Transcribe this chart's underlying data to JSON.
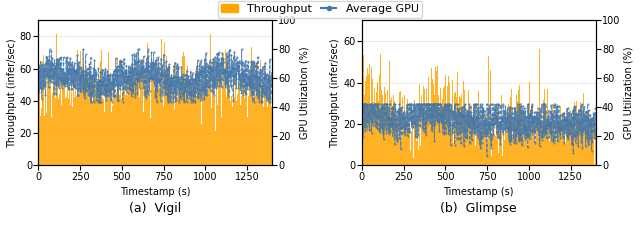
{
  "fig_width": 6.4,
  "fig_height": 2.36,
  "dpi": 100,
  "n_points": 1400,
  "vigil": {
    "throughput_mean": 50,
    "throughput_std": 10,
    "throughput_min": 0,
    "throughput_max": 85,
    "gpu_mean": 60,
    "gpu_std": 6,
    "gpu_min": 44,
    "gpu_max": 80,
    "ylim_left": [
      0,
      90
    ],
    "ylim_right": [
      0,
      100
    ],
    "yticks_left": [
      0,
      20,
      40,
      60,
      80
    ],
    "yticks_right": [
      0,
      20,
      40,
      60,
      80,
      100
    ],
    "xlabel": "Timestamp (s)",
    "ylabel_left": "Throughput (infer/sec)",
    "ylabel_right": "GPU Utilization (%)",
    "title": "(a)  Vigil"
  },
  "glimpse": {
    "throughput_mean": 25,
    "throughput_std": 8,
    "throughput_min": 0,
    "throughput_max": 65,
    "gpu_mean": 38,
    "gpu_std": 7,
    "gpu_min": 10,
    "gpu_max": 65,
    "ylim_left": [
      0,
      70
    ],
    "ylim_right": [
      0,
      100
    ],
    "yticks_left": [
      0,
      20,
      40,
      60
    ],
    "yticks_right": [
      0,
      20,
      40,
      60,
      80,
      100
    ],
    "xlabel": "Timestamp (s)",
    "ylabel_left": "Throughput (infer/sec)",
    "ylabel_right": "GPU Utilization (%)",
    "title": "(b)  Glimpse"
  },
  "bar_color": "#FFA500",
  "line_color": "#4477AA",
  "bar_alpha": 0.85,
  "line_alpha": 0.85,
  "legend_labels": [
    "Throughput",
    "Average GPU"
  ],
  "xticks": [
    0,
    250,
    500,
    750,
    1000,
    1250
  ],
  "xlim": [
    0,
    1400
  ],
  "grid_color": "#aaaaaa",
  "grid_alpha": 0.5,
  "grid_linestyle": "--",
  "tick_fontsize": 7,
  "label_fontsize": 7,
  "legend_fontsize": 8,
  "title_fontsize": 9
}
